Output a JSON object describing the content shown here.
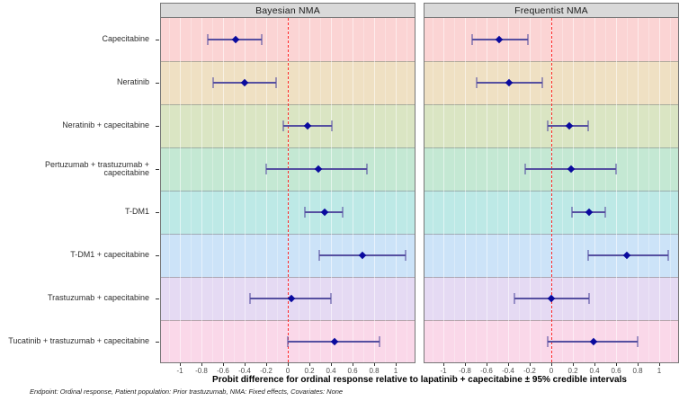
{
  "figure": {
    "x_axis_title": "Probit difference for ordinal response relative to lapatinib + capecitabine ± 95% credible intervals",
    "footnote": "Endpoint: Ordinal response,  Patient population: Prior trastuzumab,  NMA: Fixed effects,  Covariates: None"
  },
  "chart_data": {
    "type": "scatter",
    "subtype": "forest-plot-faceted",
    "title": "",
    "xlabel": "Probit difference for ordinal response relative to lapatinib + capecitabine ± 95% credible intervals",
    "ylabel": "",
    "legend_position": "none",
    "grid": true,
    "xlim": [
      -1.175,
      1.175
    ],
    "reference_line_x": 0,
    "facets": [
      {
        "title": "Bayesian NMA"
      },
      {
        "title": "Frequentist NMA"
      }
    ],
    "categories": [
      "Capecitabine",
      "Neratinib",
      "Neratinib + capecitabine",
      "Pertuzumab + trastuzumab + capecitabine",
      "T-DM1",
      "T-DM1 + capecitabine",
      "Trastuzumab + capecitabine",
      "Tucatinib + trastuzumab + capecitabine"
    ],
    "row_band_colors": [
      "#fbd4d4",
      "#efe0c3",
      "#dae5c3",
      "#c4e8d3",
      "#bde9e6",
      "#cce3f8",
      "#e5daf3",
      "#fad8e9"
    ],
    "series": [
      {
        "name": "Bayesian NMA",
        "estimates": [
          -0.48,
          -0.4,
          0.18,
          0.28,
          0.34,
          0.69,
          0.03,
          0.43
        ],
        "ci_low": [
          -0.74,
          -0.69,
          -0.04,
          -0.2,
          0.16,
          0.29,
          -0.35,
          0.0
        ],
        "ci_high": [
          -0.24,
          -0.11,
          0.41,
          0.73,
          0.51,
          1.09,
          0.4,
          0.85
        ]
      },
      {
        "name": "Frequentist NMA",
        "estimates": [
          -0.48,
          -0.39,
          0.17,
          0.18,
          0.35,
          0.7,
          0.0,
          0.39
        ],
        "ci_low": [
          -0.73,
          -0.69,
          -0.03,
          -0.24,
          0.19,
          0.34,
          -0.34,
          -0.03
        ],
        "ci_high": [
          -0.22,
          -0.08,
          0.34,
          0.6,
          0.5,
          1.08,
          0.35,
          0.8
        ]
      }
    ],
    "x_ticks": {
      "values": [
        -1,
        -0.8,
        -0.6,
        -0.4,
        -0.2,
        0,
        0.2,
        0.4,
        0.6,
        0.8,
        1
      ],
      "labels": [
        "-1",
        "-0.8",
        "-0.6",
        "-0.4",
        "-0.2",
        "0",
        "0.2",
        "0.4",
        "0.6",
        "0.8",
        "1"
      ]
    }
  },
  "style": {
    "strip_bg": "#d9d9d9",
    "panel_border": "#767676",
    "band_separator": "rgba(125,125,125,0.55)",
    "grid_major": "rgba(255,255,255,0.55)",
    "grid_minor": "rgba(255,255,255,0.28)",
    "reference_line_color": "#ff2b2b",
    "errorbar_color": "#554fa0",
    "errorbar_cap_color": "rgba(85,79,160,0.55)",
    "point_color": "#0a0a9e",
    "tick_label_color": "#4d4d4d",
    "category_label_color": "#2e2e2e"
  }
}
